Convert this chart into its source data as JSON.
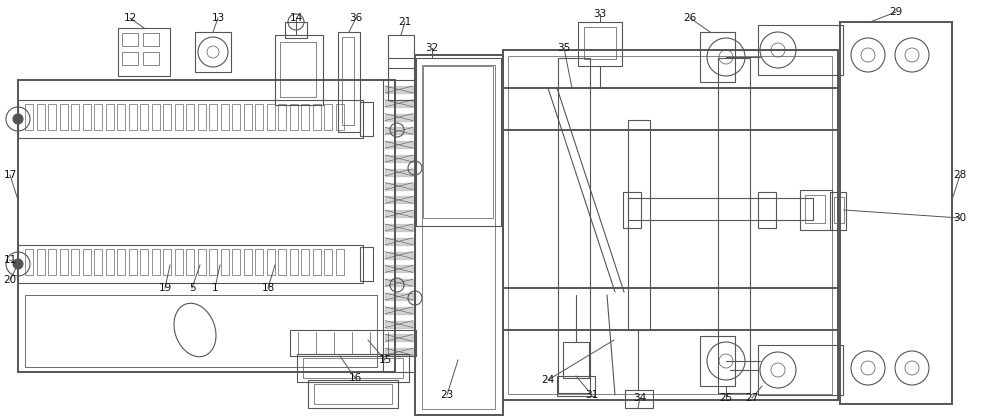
{
  "bg_color": "#ffffff",
  "line_color": "#555555",
  "lw": 0.8,
  "lw2": 1.4,
  "figsize": [
    10.0,
    4.18
  ],
  "dpi": 100
}
